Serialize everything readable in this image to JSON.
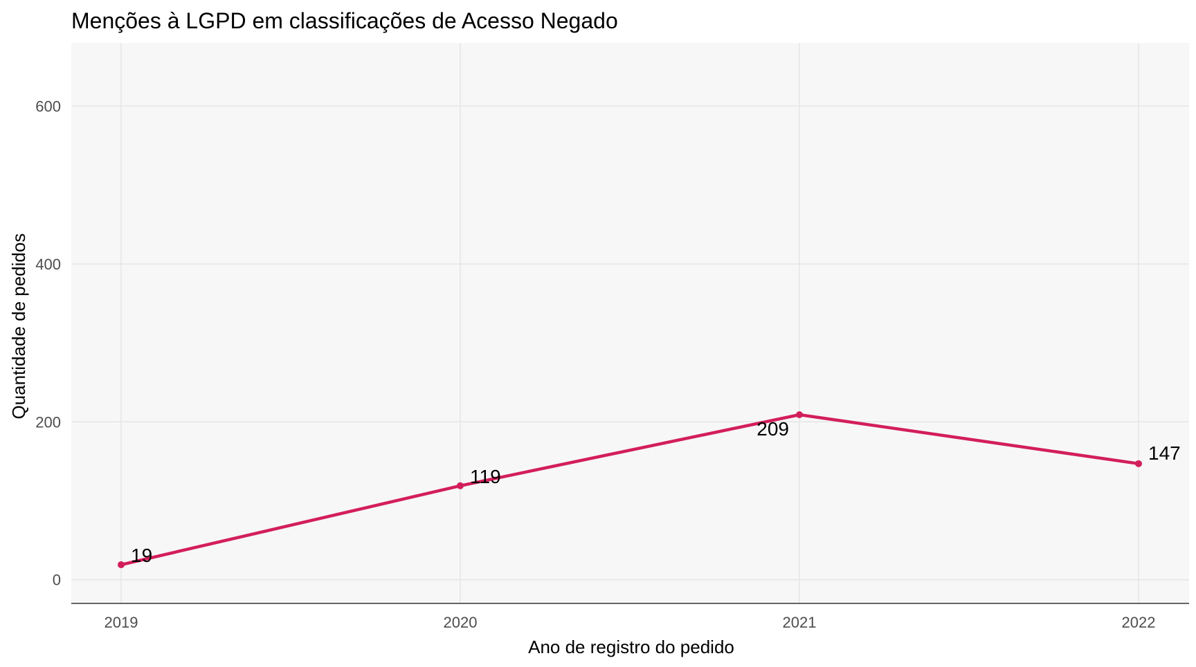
{
  "chart_data": {
    "type": "line",
    "title": "Menções à LGPD em classificações de Acesso Negado",
    "xlabel": "Ano de registro do pedido",
    "ylabel": "Quantidade de pedidos",
    "x": [
      2019,
      2020,
      2021,
      2022
    ],
    "x_tick_labels": [
      "2019",
      "2020",
      "2021",
      "2022"
    ],
    "y_ticks": [
      0,
      200,
      400,
      600
    ],
    "y_tick_labels": [
      "0",
      "200",
      "400",
      "600"
    ],
    "ylim": [
      -30,
      680
    ],
    "series": [
      {
        "values": [
          19,
          119,
          209,
          147
        ],
        "data_labels": [
          "19",
          "119",
          "209",
          "147"
        ],
        "color": "#d31e5c"
      }
    ],
    "grid": true,
    "legend": "none",
    "panel_background": "#f7f7f7",
    "grid_color": "#e6e6e6"
  }
}
